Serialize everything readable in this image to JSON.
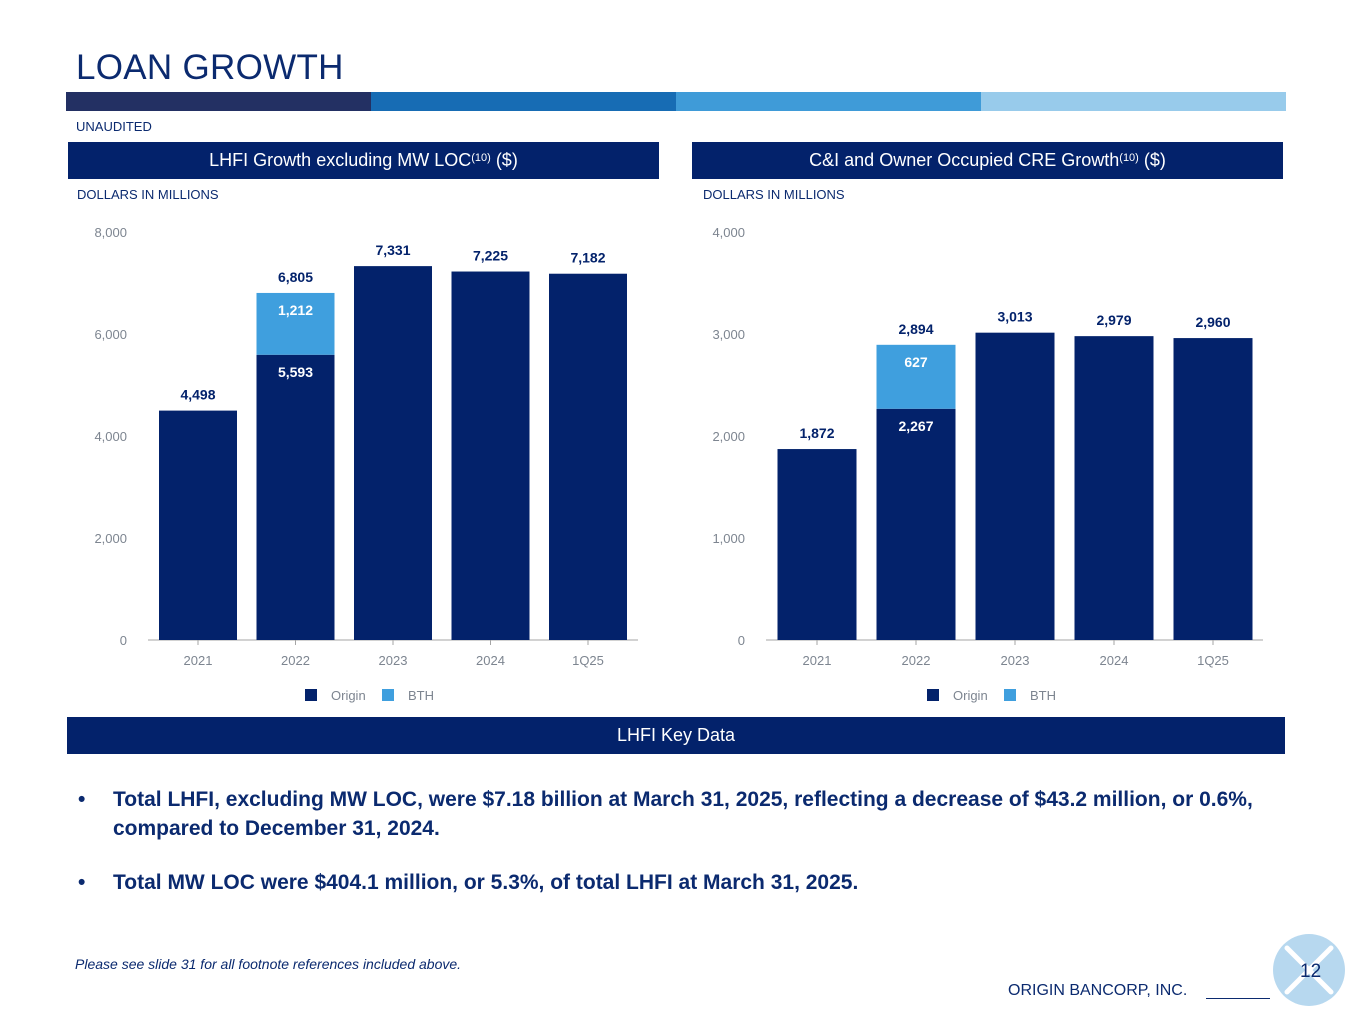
{
  "title": "LOAN GROWTH",
  "brand_colors": [
    "#233063",
    "#176cb4",
    "#3f9bd8",
    "#98cbeb"
  ],
  "unaudited": "UNAUDITED",
  "left_panel": {
    "header_text": "LHFI Growth excluding MW LOC",
    "header_sup": "(10)",
    "header_suffix": " ($)",
    "units": "DOLLARS IN MILLIONS"
  },
  "right_panel": {
    "header_text": "C&I and Owner Occupied CRE Growth",
    "header_sup": "(10)",
    "header_suffix": " ($)",
    "units": "DOLLARS IN MILLIONS"
  },
  "key_data_header": "LHFI Key Data",
  "bullet_char": "•",
  "bullets": [
    "Total LHFI, excluding MW LOC, were $7.18 billion at March 31, 2025, reflecting a decrease of $43.2 million, or 0.6%, compared to December 31, 2024.",
    "Total MW LOC were $404.1 million, or 5.3%, of total LHFI at March 31, 2025."
  ],
  "footnote": "Please see slide 31 for all footnote references included above.",
  "company": "ORIGIN BANCORP, INC.",
  "page_number": "12",
  "chart_data": [
    {
      "type": "bar",
      "stacked": true,
      "title": "LHFI Growth excluding MW LOC(10) ($)",
      "ylabel": "DOLLARS IN MILLIONS",
      "categories": [
        "2021",
        "2022",
        "2023",
        "2024",
        "1Q25"
      ],
      "series": [
        {
          "name": "Origin",
          "color": "#03226b",
          "values": [
            4498,
            5593,
            7331,
            7225,
            7182
          ],
          "labels": [
            "",
            "5,593",
            "",
            "",
            ""
          ]
        },
        {
          "name": "BTH",
          "color": "#3f9fde",
          "values": [
            0,
            1212,
            0,
            0,
            0
          ],
          "labels": [
            "",
            "1,212",
            "",
            "",
            ""
          ]
        }
      ],
      "totals": [
        "4,498",
        "6,805",
        "7,331",
        "7,225",
        "7,182"
      ],
      "ylim": [
        0,
        8000
      ],
      "yticks": [
        0,
        2000,
        4000,
        6000,
        8000
      ],
      "ytick_labels": [
        "0",
        "2,000",
        "4,000",
        "6,000",
        "8,000"
      ],
      "legend_position": "bottom-center"
    },
    {
      "type": "bar",
      "stacked": true,
      "title": "C&I and Owner Occupied CRE Growth(10) ($)",
      "ylabel": "DOLLARS IN MILLIONS",
      "categories": [
        "2021",
        "2022",
        "2023",
        "2024",
        "1Q25"
      ],
      "series": [
        {
          "name": "Origin",
          "color": "#03226b",
          "values": [
            1872,
            2267,
            3013,
            2979,
            2960
          ],
          "labels": [
            "",
            "2,267",
            "",
            "",
            ""
          ]
        },
        {
          "name": "BTH",
          "color": "#3f9fde",
          "values": [
            0,
            627,
            0,
            0,
            0
          ],
          "labels": [
            "",
            "627",
            "",
            "",
            ""
          ]
        }
      ],
      "totals": [
        "1,872",
        "2,894",
        "3,013",
        "2,979",
        "2,960"
      ],
      "ylim": [
        0,
        4000
      ],
      "yticks": [
        0,
        1000,
        2000,
        3000,
        4000
      ],
      "ytick_labels": [
        "0",
        "1,000",
        "2,000",
        "3,000",
        "4,000"
      ],
      "legend_position": "bottom-center"
    }
  ]
}
